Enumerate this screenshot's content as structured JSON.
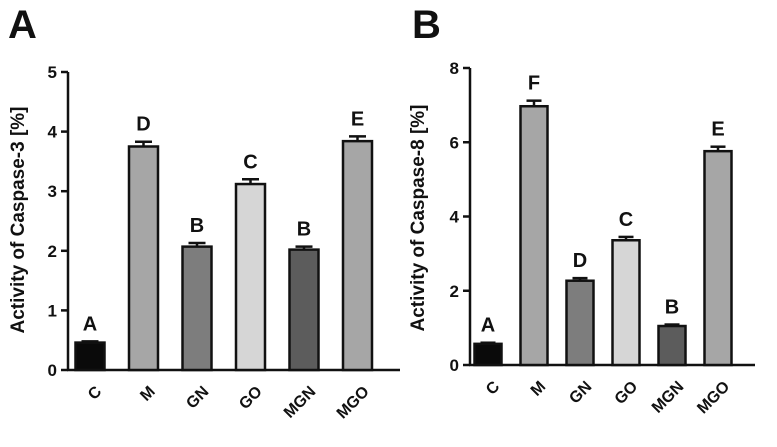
{
  "chart_data": [
    {
      "type": "bar",
      "panel": "A",
      "title": "",
      "xlabel": "",
      "ylabel": "Activity of Caspase-3 [%]",
      "ylim": [
        0,
        5
      ],
      "yticks": [
        "0",
        "1",
        "2",
        "3",
        "4",
        "5"
      ],
      "categories": [
        "C",
        "M",
        "GN",
        "GO",
        "MGN",
        "MGO"
      ],
      "values": [
        0.46,
        3.75,
        2.07,
        3.12,
        2.02,
        3.84
      ],
      "errors": [
        0.02,
        0.08,
        0.06,
        0.08,
        0.05,
        0.08
      ],
      "significance": [
        "A",
        "D",
        "B",
        "C",
        "B",
        "E"
      ],
      "bar_colors": [
        "#0a0a0a",
        "#a6a6a6",
        "#7d7d7d",
        "#d6d6d6",
        "#5c5c5c",
        "#a6a6a6"
      ],
      "grid": false
    },
    {
      "type": "bar",
      "panel": "B",
      "title": "",
      "xlabel": "",
      "ylabel": "Activity of Caspase-8 [%]",
      "ylim": [
        0,
        8
      ],
      "yticks": [
        "0",
        "2",
        "4",
        "6",
        "8"
      ],
      "categories": [
        "C",
        "M",
        "GN",
        "GO",
        "MGN",
        "MGO"
      ],
      "values": [
        0.57,
        6.97,
        2.27,
        3.36,
        1.05,
        5.76
      ],
      "errors": [
        0.03,
        0.15,
        0.07,
        0.09,
        0.04,
        0.12
      ],
      "significance": [
        "A",
        "F",
        "D",
        "C",
        "B",
        "E"
      ],
      "bar_colors": [
        "#0a0a0a",
        "#a6a6a6",
        "#7d7d7d",
        "#d6d6d6",
        "#5c5c5c",
        "#a6a6a6"
      ],
      "grid": false
    }
  ]
}
